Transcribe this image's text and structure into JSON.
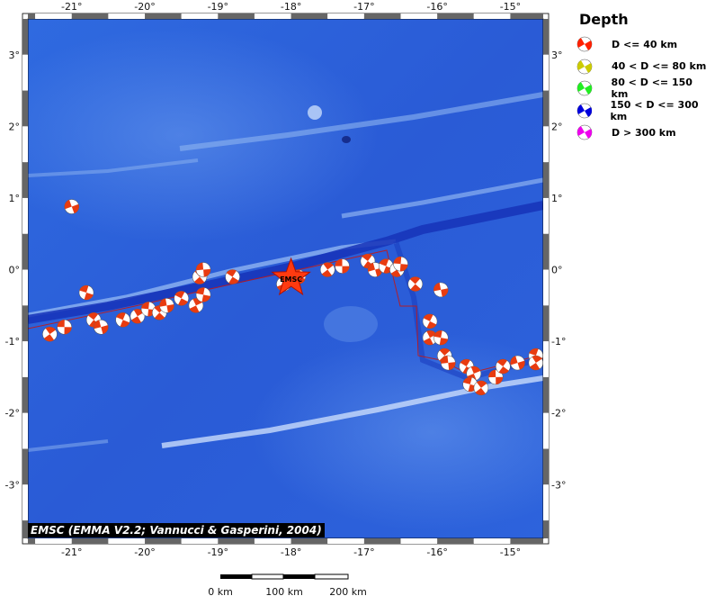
{
  "map": {
    "lon_range": [
      -21.6,
      -14.55
    ],
    "lat_range": [
      -3.75,
      3.5
    ],
    "lon_ticks": [
      "-21°",
      "-20°",
      "-19°",
      "-18°",
      "-17°",
      "-16°",
      "-15°"
    ],
    "lat_ticks": [
      "3°",
      "2°",
      "1°",
      "0°",
      "-1°",
      "-2°",
      "-3°"
    ],
    "epicenter_label": "EMSC",
    "credit": "EMSC (EMMA V2.2; Vannucci & Gasperini, 2004)",
    "colors": {
      "ocean": "#2a5fd8",
      "beachball": "#e83b10",
      "frame": "#666666"
    }
  },
  "legend": {
    "title": "Depth",
    "items": [
      {
        "label": "D <= 40 km",
        "color": "#ff2000"
      },
      {
        "label": "40 < D <= 80 km",
        "color": "#cccc00"
      },
      {
        "label": "80 < D <= 150 km",
        "color": "#22ee22"
      },
      {
        "label": "150 < D <= 300 km",
        "color": "#0000dd"
      },
      {
        "label": "D > 300 km",
        "color": "#ee00ee"
      }
    ]
  },
  "scale_bar": {
    "labels": [
      "0 km",
      "100 km",
      "200 km"
    ]
  },
  "events": [
    {
      "lon": -21.0,
      "lat": 0.88
    },
    {
      "lon": -20.8,
      "lat": -0.32
    },
    {
      "lon": -21.3,
      "lat": -0.9
    },
    {
      "lon": -21.1,
      "lat": -0.8
    },
    {
      "lon": -20.7,
      "lat": -0.7
    },
    {
      "lon": -20.6,
      "lat": -0.8
    },
    {
      "lon": -20.3,
      "lat": -0.7
    },
    {
      "lon": -20.1,
      "lat": -0.65
    },
    {
      "lon": -19.95,
      "lat": -0.55
    },
    {
      "lon": -19.8,
      "lat": -0.6
    },
    {
      "lon": -19.7,
      "lat": -0.5
    },
    {
      "lon": -19.5,
      "lat": -0.4
    },
    {
      "lon": -19.3,
      "lat": -0.5
    },
    {
      "lon": -19.2,
      "lat": -0.35
    },
    {
      "lon": -19.25,
      "lat": -0.1
    },
    {
      "lon": -19.2,
      "lat": 0.0
    },
    {
      "lon": -18.8,
      "lat": -0.1
    },
    {
      "lon": -18.1,
      "lat": -0.2
    },
    {
      "lon": -17.9,
      "lat": -0.1
    },
    {
      "lon": -17.5,
      "lat": 0.0
    },
    {
      "lon": -17.3,
      "lat": 0.05
    },
    {
      "lon": -16.95,
      "lat": 0.12
    },
    {
      "lon": -16.85,
      "lat": 0.0
    },
    {
      "lon": -16.7,
      "lat": 0.05
    },
    {
      "lon": -16.55,
      "lat": 0.0
    },
    {
      "lon": -16.5,
      "lat": 0.08
    },
    {
      "lon": -16.3,
      "lat": -0.2
    },
    {
      "lon": -15.95,
      "lat": -0.28
    },
    {
      "lon": -16.1,
      "lat": -0.72
    },
    {
      "lon": -16.1,
      "lat": -0.95
    },
    {
      "lon": -15.95,
      "lat": -0.95
    },
    {
      "lon": -15.9,
      "lat": -1.2
    },
    {
      "lon": -15.85,
      "lat": -1.3
    },
    {
      "lon": -15.6,
      "lat": -1.35
    },
    {
      "lon": -15.5,
      "lat": -1.45
    },
    {
      "lon": -15.55,
      "lat": -1.6
    },
    {
      "lon": -15.4,
      "lat": -1.65
    },
    {
      "lon": -15.2,
      "lat": -1.5
    },
    {
      "lon": -15.1,
      "lat": -1.35
    },
    {
      "lon": -14.9,
      "lat": -1.3
    },
    {
      "lon": -14.65,
      "lat": -1.2
    },
    {
      "lon": -14.65,
      "lat": -1.3
    }
  ],
  "epicenter": {
    "lon": -18.0,
    "lat": -0.12
  }
}
